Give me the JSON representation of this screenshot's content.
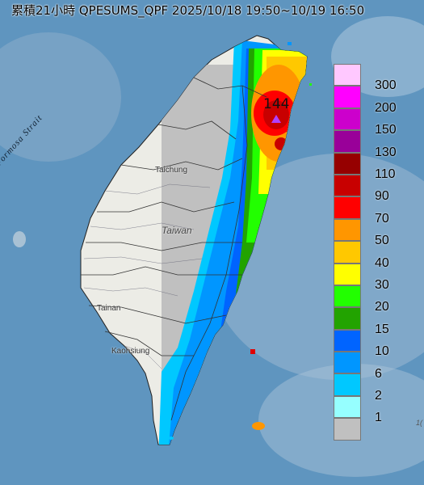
{
  "title": "累積21小時 QPESUMS_QPF 2025/10/18 19:50~10/19 16:50",
  "labels": {
    "strait": "Formosa Strait",
    "island": "Taiwan",
    "cities": [
      {
        "id": "taichung",
        "text": "Taichung"
      },
      {
        "id": "tainan",
        "text": "Tainan"
      },
      {
        "id": "kaohsiung",
        "text": "Kaohsiung"
      }
    ],
    "edge_text": "1("
  },
  "max_rain": {
    "value": "144",
    "unit_level": "150",
    "marker": "triangle-marker"
  },
  "legend": [
    {
      "label": "300",
      "color": "#ffc8ff"
    },
    {
      "label": "200",
      "color": "#ff00ff"
    },
    {
      "label": "150",
      "color": "#cc00cc"
    },
    {
      "label": "130",
      "color": "#990099"
    },
    {
      "label": "110",
      "color": "#960000"
    },
    {
      "label": "90",
      "color": "#c80000"
    },
    {
      "label": "70",
      "color": "#ff0000"
    },
    {
      "label": "50",
      "color": "#ff9600"
    },
    {
      "label": "40",
      "color": "#ffc800"
    },
    {
      "label": "30",
      "color": "#ffff00"
    },
    {
      "label": "20",
      "color": "#22ff00"
    },
    {
      "label": "15",
      "color": "#22a300"
    },
    {
      "label": "10",
      "color": "#0064ff"
    },
    {
      "label": "6",
      "color": "#0096ff"
    },
    {
      "label": "2",
      "color": "#00c8ff"
    },
    {
      "label": "1",
      "color": "#96ffff"
    },
    {
      "label": "",
      "color": "#c0c0c0"
    }
  ]
}
